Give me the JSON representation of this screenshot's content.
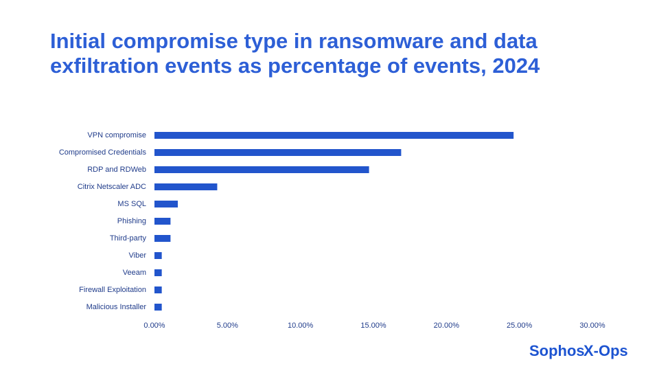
{
  "chart_data": {
    "type": "bar",
    "orientation": "horizontal",
    "title": "Initial compromise type in ransomware and data exfiltration events as percentage of events, 2024",
    "categories": [
      "VPN compromise",
      "Compromised Credentials",
      "RDP and RDWeb",
      "Citrix Netscaler ADC",
      "MS SQL",
      "Phishing",
      "Third-party",
      "Viber",
      "Veeam",
      "Firewall Exploitation",
      "Malicious Installer"
    ],
    "values": [
      24.6,
      16.9,
      14.7,
      4.3,
      1.6,
      1.1,
      1.1,
      0.5,
      0.5,
      0.5,
      0.5
    ],
    "color": "#2255cc",
    "xlim": [
      0,
      30
    ],
    "xticks": [
      {
        "value": 0,
        "label": "0.00%"
      },
      {
        "value": 5,
        "label": "5.00%"
      },
      {
        "value": 10,
        "label": "10.00%"
      },
      {
        "value": 15,
        "label": "15.00%"
      },
      {
        "value": 20,
        "label": "20.00%"
      },
      {
        "value": 25,
        "label": "25.00%"
      },
      {
        "value": 30,
        "label": "30.00%"
      }
    ],
    "grid": false
  },
  "logo": {
    "brand": "Sophos",
    "product": "X-Ops"
  }
}
